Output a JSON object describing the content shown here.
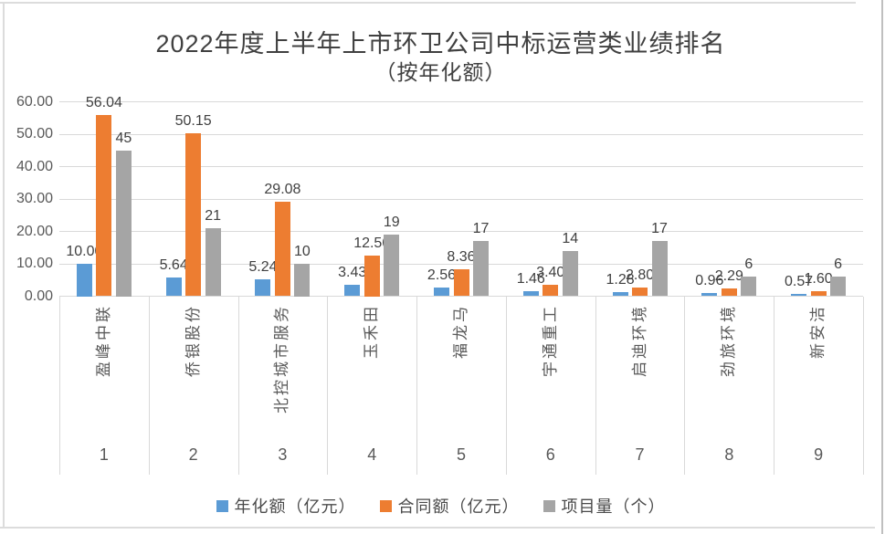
{
  "chart_data": {
    "type": "bar",
    "title": "2022年度上半年上市环卫公司中标运营类业绩排名",
    "subtitle": "（按年化额）",
    "categories": [
      "盈峰中联",
      "侨银股份",
      "北控城市服务",
      "玉禾田",
      "福龙马",
      "宇通重工",
      "启迪环境",
      "劲旅环境",
      "新安洁"
    ],
    "category_ranks": [
      "1",
      "2",
      "3",
      "4",
      "5",
      "6",
      "7",
      "8",
      "9"
    ],
    "series": [
      {
        "id": "annualized-amount",
        "name": "年化额（亿元）",
        "color": "#5b9bd5",
        "values": [
          10.0,
          5.64,
          5.24,
          3.43,
          2.56,
          1.46,
          1.28,
          0.96,
          0.57
        ],
        "labels": [
          "10.00",
          "5.64",
          "5.24",
          "3.43",
          "2.56",
          "1.46",
          "1.28",
          "0.96",
          "0.57"
        ]
      },
      {
        "id": "contract-amount",
        "name": "合同额（亿元）",
        "color": "#ed7d31",
        "values": [
          56.04,
          50.15,
          29.08,
          12.5,
          8.36,
          3.4,
          2.8,
          2.29,
          1.6
        ],
        "labels": [
          "56.04",
          "50.15",
          "29.08",
          "12.50",
          "8.36",
          "3.40",
          "2.80",
          "2.29",
          "1.60"
        ]
      },
      {
        "id": "project-count",
        "name": "项目量（个）",
        "color": "#a5a5a5",
        "values": [
          45,
          21,
          10,
          19,
          17,
          14,
          17,
          6,
          6
        ],
        "labels": [
          "45",
          "21",
          "10",
          "19",
          "17",
          "14",
          "17",
          "6",
          "6"
        ]
      }
    ],
    "y_axis": {
      "min": 0,
      "max": 60,
      "step": 10,
      "tick_labels": [
        "0.00",
        "10.00",
        "20.00",
        "30.00",
        "40.00",
        "50.00",
        "60.00"
      ]
    },
    "grid": true,
    "gridline_color": "#d9d9d9",
    "legend_position": "bottom"
  }
}
